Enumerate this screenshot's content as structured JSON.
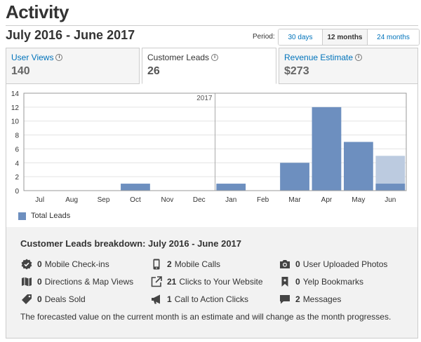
{
  "page": {
    "title": "Activity",
    "range": "July 2016 - June 2017"
  },
  "period": {
    "label": "Period:",
    "options": [
      "30 days",
      "12 months",
      "24 months"
    ],
    "selected": "12 months"
  },
  "tabs": [
    {
      "label": "User Views",
      "value": "140",
      "active": false
    },
    {
      "label": "Customer Leads",
      "value": "26",
      "active": true
    },
    {
      "label": "Revenue Estimate",
      "value": "$273",
      "active": false
    }
  ],
  "chart_data": {
    "type": "bar",
    "categories": [
      "Jul",
      "Aug",
      "Sep",
      "Oct",
      "Nov",
      "Dec",
      "Jan",
      "Feb",
      "Mar",
      "Apr",
      "May",
      "Jun"
    ],
    "series": [
      {
        "name": "Total Leads",
        "values": [
          0,
          0,
          0,
          1,
          0,
          0,
          1,
          0,
          4,
          12,
          7,
          1
        ]
      }
    ],
    "forecast": {
      "category": "Jun",
      "value": 5
    },
    "year_marker": {
      "label": "2017",
      "category": "Jan"
    },
    "ylim": [
      0,
      14
    ],
    "yticks": [
      0,
      2,
      4,
      6,
      8,
      10,
      12,
      14
    ],
    "grid": true,
    "legend_position": "bottom-left",
    "colors": {
      "bar": "#6d8fbf",
      "forecast": "#bccbe0",
      "grid": "#e3e3e3"
    }
  },
  "breakdown": {
    "title": "Customer Leads breakdown: July 2016 - June 2017",
    "items": [
      {
        "count": "0",
        "label": "Mobile Check-ins",
        "icon": "check-in-badge-icon"
      },
      {
        "count": "0",
        "label": "Directions & Map Views",
        "icon": "map-icon"
      },
      {
        "count": "0",
        "label": "Deals Sold",
        "icon": "tag-icon"
      },
      {
        "count": "2",
        "label": "Mobile Calls",
        "icon": "phone-icon"
      },
      {
        "count": "21",
        "label": "Clicks to Your Website",
        "icon": "external-link-icon"
      },
      {
        "count": "1",
        "label": "Call to Action Clicks",
        "icon": "megaphone-icon"
      },
      {
        "count": "0",
        "label": "User Uploaded Photos",
        "icon": "camera-icon"
      },
      {
        "count": "0",
        "label": "Yelp Bookmarks",
        "icon": "bookmark-icon"
      },
      {
        "count": "2",
        "label": "Messages",
        "icon": "message-icon"
      }
    ],
    "footnote": "The forecasted value on the current month is an estimate and will change as the month progresses."
  }
}
